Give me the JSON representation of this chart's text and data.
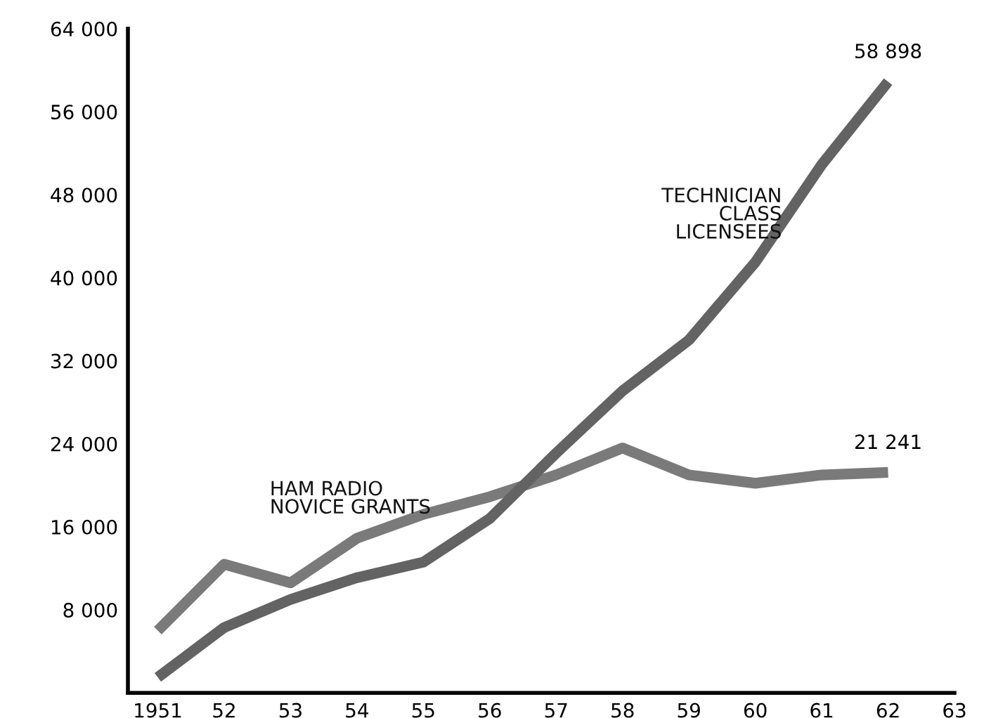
{
  "chart_data": {
    "type": "line",
    "x": [
      1951,
      1952,
      1953,
      1954,
      1955,
      1956,
      1957,
      1958,
      1959,
      1960,
      1961,
      1962
    ],
    "series": [
      {
        "name": "HAM RADIO\nNOVICE GRANTS",
        "color": "#7a7a7a",
        "values": [
          6000,
          12400,
          10600,
          14900,
          17200,
          18900,
          21000,
          23600,
          21000,
          20200,
          21000,
          21241
        ],
        "value_labels": [
          null,
          null,
          null,
          null,
          null,
          null,
          null,
          null,
          null,
          null,
          null,
          "21 241"
        ]
      },
      {
        "name": "TECHNICIAN\nCLASS\nLICENSEES",
        "color": "#636363",
        "values": [
          1500,
          6300,
          9000,
          11100,
          12600,
          16800,
          23100,
          29100,
          34000,
          41500,
          50900,
          58898
        ],
        "value_labels": [
          null,
          null,
          null,
          null,
          null,
          null,
          null,
          null,
          null,
          null,
          null,
          "58 898"
        ]
      }
    ],
    "xlim": [
      1950.55,
      1963
    ],
    "xticks": [
      {
        "value": 1951,
        "label": "1951"
      },
      {
        "value": 1952,
        "label": "52"
      },
      {
        "value": 1953,
        "label": "53"
      },
      {
        "value": 1954,
        "label": "54"
      },
      {
        "value": 1955,
        "label": "55"
      },
      {
        "value": 1956,
        "label": "56"
      },
      {
        "value": 1957,
        "label": "57"
      },
      {
        "value": 1958,
        "label": "58"
      },
      {
        "value": 1959,
        "label": "59"
      },
      {
        "value": 1960,
        "label": "60"
      },
      {
        "value": 1961,
        "label": "61"
      },
      {
        "value": 1962,
        "label": "62"
      },
      {
        "value": 1963,
        "label": "63"
      }
    ],
    "ylim": [
      0,
      64000
    ],
    "yticks": [
      {
        "value": 8000,
        "label": "8 000"
      },
      {
        "value": 16000,
        "label": "16 000"
      },
      {
        "value": 24000,
        "label": "24 000"
      },
      {
        "value": 32000,
        "label": "32 000"
      },
      {
        "value": 40000,
        "label": "40 000"
      },
      {
        "value": 48000,
        "label": "48 000"
      },
      {
        "value": 56000,
        "label": "56 000"
      },
      {
        "value": 64000,
        "label": "64 000"
      }
    ],
    "grid": false,
    "legend": false,
    "marker": "none",
    "line_style": "solid"
  }
}
